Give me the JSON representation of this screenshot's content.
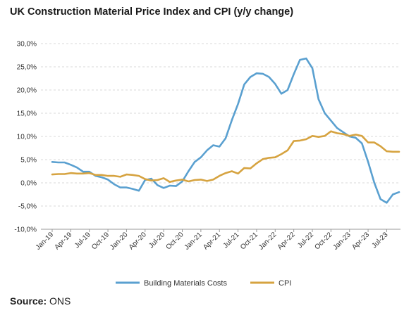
{
  "title": "UK Construction Material Price Index and CPI (y/y change)",
  "source": {
    "label": "Source:",
    "value": "ONS"
  },
  "colors": {
    "building": "#5aa0d0",
    "cpi": "#d6a340",
    "grid": "#cccccc",
    "axis": "#999999"
  },
  "chart_data": {
    "type": "line",
    "title": "UK Construction Material Price Index and CPI (y/y change)",
    "xlabel": "",
    "ylabel": "",
    "ylim": [
      -10,
      30
    ],
    "y_ticks": [
      "30,0%",
      "25,0%",
      "20,0%",
      "15,0%",
      "10,0%",
      "5,0%",
      "0,0%",
      "-5,0%",
      "-10,0%"
    ],
    "y_tick_values": [
      30,
      25,
      20,
      15,
      10,
      5,
      0,
      -5,
      -10
    ],
    "x_tick_labels": [
      "Jan-19",
      "Apr-19",
      "Jul-19",
      "Oct-19",
      "Jan-20",
      "Apr-20",
      "Jul-20",
      "Oct-20",
      "Jan-21",
      "Apr-21",
      "Jul-21",
      "Oct-21",
      "Jan-22",
      "Apr-22",
      "Jul-22",
      "Oct-22",
      "Jan-23",
      "Apr-23",
      "Jul-23"
    ],
    "x": [
      "Jan-19",
      "Feb-19",
      "Mar-19",
      "Apr-19",
      "May-19",
      "Jun-19",
      "Jul-19",
      "Aug-19",
      "Sep-19",
      "Oct-19",
      "Nov-19",
      "Dec-19",
      "Jan-20",
      "Feb-20",
      "Mar-20",
      "Apr-20",
      "May-20",
      "Jun-20",
      "Jul-20",
      "Aug-20",
      "Sep-20",
      "Oct-20",
      "Nov-20",
      "Dec-20",
      "Jan-21",
      "Feb-21",
      "Mar-21",
      "Apr-21",
      "May-21",
      "Jun-21",
      "Jul-21",
      "Aug-21",
      "Sep-21",
      "Oct-21",
      "Nov-21",
      "Dec-21",
      "Jan-22",
      "Feb-22",
      "Mar-22",
      "Apr-22",
      "May-22",
      "Jun-22",
      "Jul-22",
      "Aug-22",
      "Sep-22",
      "Oct-22",
      "Nov-22",
      "Dec-22",
      "Jan-23",
      "Feb-23",
      "Mar-23",
      "Apr-23",
      "May-23",
      "Jun-23",
      "Jul-23",
      "Aug-23",
      "Sep-23"
    ],
    "series": [
      {
        "name": "Building Materials Costs",
        "values": [
          4.5,
          4.4,
          4.4,
          3.9,
          3.3,
          2.4,
          2.4,
          1.5,
          1.2,
          0.7,
          -0.3,
          -1.0,
          -1.0,
          -1.3,
          -1.7,
          0.6,
          0.9,
          -0.5,
          -1.1,
          -0.6,
          -0.7,
          0.3,
          2.5,
          4.5,
          5.5,
          7.0,
          8.1,
          7.8,
          9.6,
          13.5,
          17.0,
          21.2,
          22.8,
          23.6,
          23.5,
          22.8,
          21.3,
          19.2,
          20.0,
          23.4,
          26.5,
          26.8,
          24.7,
          18.0,
          15.0,
          13.4,
          11.8,
          10.9,
          10.0,
          9.7,
          8.5,
          4.5,
          0.0,
          -3.5,
          -4.3,
          -2.5,
          -2.0
        ]
      },
      {
        "name": "CPI",
        "values": [
          1.8,
          1.9,
          1.9,
          2.1,
          2.0,
          2.0,
          2.1,
          1.7,
          1.7,
          1.5,
          1.5,
          1.3,
          1.8,
          1.7,
          1.5,
          0.8,
          0.5,
          0.6,
          1.0,
          0.2,
          0.5,
          0.7,
          0.3,
          0.6,
          0.7,
          0.4,
          0.7,
          1.5,
          2.1,
          2.5,
          2.0,
          3.2,
          3.1,
          4.2,
          5.1,
          5.4,
          5.5,
          6.2,
          7.0,
          9.0,
          9.1,
          9.4,
          10.1,
          9.9,
          10.1,
          11.1,
          10.7,
          10.5,
          10.1,
          10.4,
          10.1,
          8.7,
          8.7,
          7.9,
          6.8,
          6.7,
          6.7
        ]
      }
    ],
    "grid": true,
    "legend": "bottom"
  }
}
